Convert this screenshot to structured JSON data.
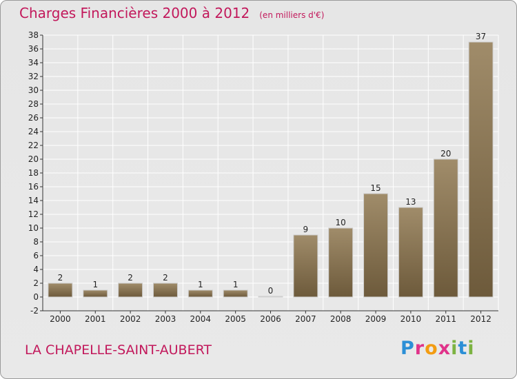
{
  "header": {
    "title": "Charges Financières 2000 à 2012",
    "unit": "(en milliers d'€)"
  },
  "footer": {
    "commune": "LA CHAPELLE-SAINT-AUBERT",
    "logo": "Proxiti"
  },
  "colors": {
    "accent": "#c2185b",
    "bar_top": "#a08c6a",
    "bar_bottom": "#6d5a3b",
    "grid": "#ffffff",
    "background": "#e6e6e6"
  },
  "chart_data": {
    "type": "bar",
    "title": "Charges Financières 2000 à 2012",
    "subtitle": "(en milliers d'€)",
    "categories": [
      "2000",
      "2001",
      "2002",
      "2003",
      "2004",
      "2005",
      "2006",
      "2007",
      "2008",
      "2009",
      "2010",
      "2011",
      "2012"
    ],
    "values": [
      2,
      1,
      2,
      2,
      1,
      1,
      0,
      9,
      10,
      15,
      13,
      20,
      37
    ],
    "ylim": [
      -2,
      38
    ],
    "yticks": [
      -2,
      0,
      2,
      4,
      6,
      8,
      10,
      12,
      14,
      16,
      18,
      20,
      22,
      24,
      26,
      28,
      30,
      32,
      34,
      36,
      38
    ],
    "grid": true
  }
}
